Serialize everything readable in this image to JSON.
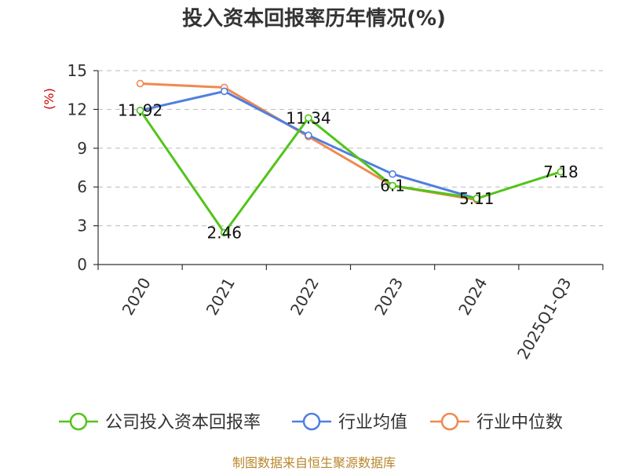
{
  "chart_data": {
    "type": "line",
    "title": "投入资本回报率历年情况(%)",
    "ylabel": "(%)",
    "categories": [
      "2020",
      "2021",
      "2022",
      "2023",
      "2024",
      "2025Q1-Q3"
    ],
    "ylim": [
      0,
      15
    ],
    "yticks": [
      "0",
      "3",
      "6",
      "9",
      "12",
      "15"
    ],
    "grid": true,
    "legend_position": "bottom",
    "series": [
      {
        "name": "公司投入资本回报率",
        "color": "#52c41a",
        "values": [
          11.92,
          2.46,
          11.34,
          6.1,
          5.11,
          7.18
        ],
        "labels": [
          "11.92",
          "2.46",
          "11.34",
          "6.1",
          "5.11",
          "7.18"
        ]
      },
      {
        "name": "行业均值",
        "color": "#4f7fe0",
        "values": [
          11.92,
          13.4,
          10.0,
          7.0,
          5.1,
          null
        ]
      },
      {
        "name": "行业中位数",
        "color": "#f0894f",
        "values": [
          14.0,
          13.7,
          9.9,
          6.1,
          5.0,
          null
        ]
      }
    ],
    "source": "制图数据来自恒生聚源数据库"
  }
}
